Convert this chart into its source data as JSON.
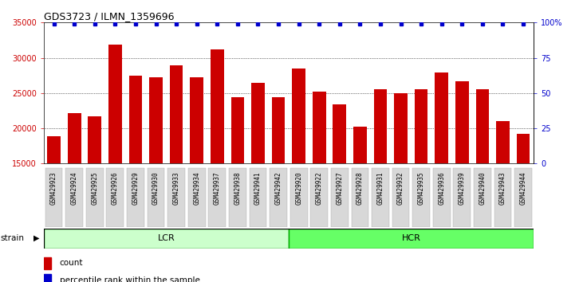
{
  "title": "GDS3723 / ILMN_1359696",
  "samples": [
    "GSM429923",
    "GSM429924",
    "GSM429925",
    "GSM429926",
    "GSM429929",
    "GSM429930",
    "GSM429933",
    "GSM429934",
    "GSM429937",
    "GSM429938",
    "GSM429941",
    "GSM429942",
    "GSM429920",
    "GSM429922",
    "GSM429927",
    "GSM429928",
    "GSM429931",
    "GSM429932",
    "GSM429935",
    "GSM429936",
    "GSM429939",
    "GSM429940",
    "GSM429943",
    "GSM429944"
  ],
  "counts": [
    18900,
    22100,
    21700,
    31900,
    27500,
    27200,
    28900,
    27200,
    31200,
    24400,
    26500,
    24400,
    28500,
    25200,
    23400,
    20200,
    25600,
    25000,
    25600,
    27900,
    26700,
    25600,
    21000,
    19200
  ],
  "groups": [
    {
      "label": "LCR",
      "start": 0,
      "end": 12,
      "color": "#ccffcc"
    },
    {
      "label": "HCR",
      "start": 12,
      "end": 24,
      "color": "#66ff66"
    }
  ],
  "bar_color": "#cc0000",
  "percentile_color": "#0000cc",
  "ymin": 15000,
  "ymax": 35000,
  "yticks": [
    15000,
    20000,
    25000,
    30000,
    35000
  ],
  "right_yticks": [
    0,
    25,
    50,
    75,
    100
  ],
  "right_ylabels": [
    "0",
    "25",
    "50",
    "75",
    "100%"
  ],
  "left_tick_color": "#cc0000",
  "right_tick_color": "#0000cc",
  "title_fontsize": 9,
  "tick_fontsize": 7,
  "xtick_fontsize": 5.5,
  "strain_label": "strain",
  "legend_items": [
    {
      "label": "count",
      "color": "#cc0000"
    },
    {
      "label": "percentile rank within the sample",
      "color": "#0000cc"
    }
  ],
  "bg_color": "#d8d8d8",
  "group_border_color": "#00aa00"
}
